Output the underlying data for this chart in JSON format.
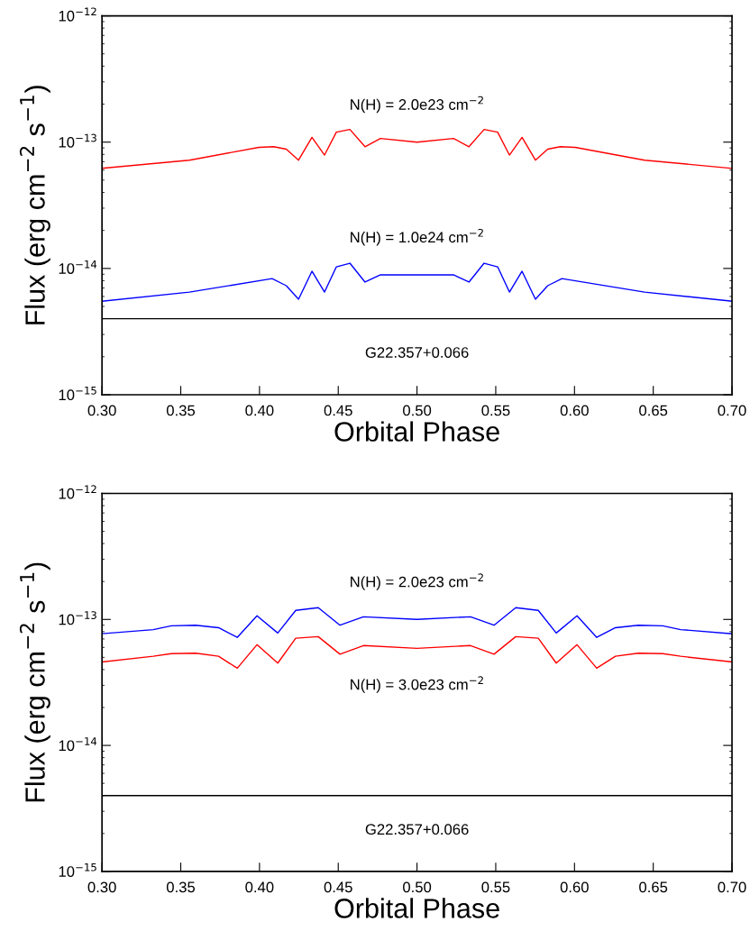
{
  "chart_data": [
    {
      "type": "line",
      "xlabel": "Orbital Phase",
      "ylabel": "Flux (erg cm$^{−2}$ s$^{−1}$)",
      "log": "y",
      "grid": false,
      "legend": false,
      "xlim": [
        0.3,
        0.7
      ],
      "ylim": [
        1e-15,
        1e-12
      ],
      "xticks": [
        {
          "value": 0.3,
          "label": "0.30"
        },
        {
          "value": 0.35,
          "label": "0.35"
        },
        {
          "value": 0.4,
          "label": "0.40"
        },
        {
          "value": 0.45,
          "label": "0.45"
        },
        {
          "value": 0.5,
          "label": "0.50"
        },
        {
          "value": 0.55,
          "label": "0.55"
        },
        {
          "value": 0.6,
          "label": "0.60"
        },
        {
          "value": 0.65,
          "label": "0.65"
        },
        {
          "value": 0.7,
          "label": "0.70"
        }
      ],
      "yticks": [
        {
          "value": 1e-15,
          "label": "10$^{−15}$"
        },
        {
          "value": 1e-14,
          "label": "10$^{−14}$"
        },
        {
          "value": 1e-13,
          "label": "10$^{−13}$"
        },
        {
          "value": 1e-12,
          "label": "10$^{−12}$"
        }
      ],
      "series": [
        {
          "name": "N(H) = 2.0e23 cm$^{−2}$",
          "color": "#ff0000",
          "x": [
            0.3,
            0.3555,
            0.3996,
            0.409,
            0.417,
            0.4248,
            0.4333,
            0.4413,
            0.4488,
            0.4574,
            0.467,
            0.4768,
            0.5,
            0.5232,
            0.533,
            0.5426,
            0.5512,
            0.5587,
            0.5667,
            0.5752,
            0.583,
            0.591,
            0.6004,
            0.6445,
            0.7
          ],
          "values": [
            6.2e-14,
            7.2e-14,
            9.1e-14,
            9.2e-14,
            8.8e-14,
            7.2e-14,
            1.09e-13,
            7.9e-14,
            1.2e-13,
            1.26e-13,
            9.2e-14,
            1.07e-13,
            1e-13,
            1.07e-13,
            9.2e-14,
            1.26e-13,
            1.2e-13,
            7.9e-14,
            1.09e-13,
            7.2e-14,
            8.8e-14,
            9.2e-14,
            9.1e-14,
            7.2e-14,
            6.2e-14
          ]
        },
        {
          "name": "N(H) = 1.0e24 cm$^{−2}$",
          "color": "#0000ff",
          "x": [
            0.3,
            0.3555,
            0.408,
            0.417,
            0.4248,
            0.4333,
            0.4413,
            0.4488,
            0.4574,
            0.467,
            0.4768,
            0.5,
            0.5232,
            0.533,
            0.5426,
            0.5512,
            0.5587,
            0.5667,
            0.5752,
            0.583,
            0.592,
            0.6445,
            0.7
          ],
          "values": [
            5.5e-15,
            6.5e-15,
            8.3e-15,
            7.3e-15,
            5.7e-15,
            9.5e-15,
            6.5e-15,
            1.03e-14,
            1.1e-14,
            7.8e-15,
            8.9e-15,
            8.9e-15,
            8.9e-15,
            7.8e-15,
            1.1e-14,
            1.03e-14,
            6.5e-15,
            9.5e-15,
            5.7e-15,
            7.3e-15,
            8.3e-15,
            6.5e-15,
            5.5e-15
          ]
        }
      ],
      "ref_lines": [
        {
          "axis": "y",
          "value": 4e-15,
          "label": "G22.357+0.066",
          "color": "#000000"
        }
      ]
    },
    {
      "type": "line",
      "xlabel": "Orbital Phase",
      "ylabel": "Flux (erg cm$^{−2}$ s$^{−1}$)",
      "log": "y",
      "grid": false,
      "legend": false,
      "xlim": [
        0.3,
        0.7
      ],
      "ylim": [
        1e-15,
        1e-12
      ],
      "xticks": [
        {
          "value": 0.3,
          "label": "0.30"
        },
        {
          "value": 0.35,
          "label": "0.35"
        },
        {
          "value": 0.4,
          "label": "0.40"
        },
        {
          "value": 0.45,
          "label": "0.45"
        },
        {
          "value": 0.5,
          "label": "0.50"
        },
        {
          "value": 0.55,
          "label": "0.55"
        },
        {
          "value": 0.6,
          "label": "0.60"
        },
        {
          "value": 0.65,
          "label": "0.65"
        },
        {
          "value": 0.7,
          "label": "0.70"
        }
      ],
      "yticks": [
        {
          "value": 1e-15,
          "label": "10$^{−15}$"
        },
        {
          "value": 1e-14,
          "label": "10$^{−14}$"
        },
        {
          "value": 1e-13,
          "label": "10$^{−13}$"
        },
        {
          "value": 1e-12,
          "label": "10$^{−12}$"
        }
      ],
      "series": [
        {
          "name": "N(H) = 2.0e23 cm$^{−2}$",
          "color": "#0000ff",
          "x": [
            0.3,
            0.3326,
            0.344,
            0.3595,
            0.374,
            0.3859,
            0.3984,
            0.4116,
            0.423,
            0.4373,
            0.4511,
            0.466,
            0.5,
            0.534,
            0.5489,
            0.5627,
            0.577,
            0.5884,
            0.6016,
            0.6141,
            0.626,
            0.6405,
            0.656,
            0.6674,
            0.7
          ],
          "values": [
            7.7e-14,
            8.3e-14,
            8.9e-14,
            9e-14,
            8.6e-14,
            7.2e-14,
            1.07e-13,
            7.8e-14,
            1.18e-13,
            1.24e-13,
            9e-14,
            1.05e-13,
            1e-13,
            1.05e-13,
            9e-14,
            1.24e-13,
            1.18e-13,
            7.8e-14,
            1.07e-13,
            7.2e-14,
            8.6e-14,
            9e-14,
            8.9e-14,
            8.3e-14,
            7.7e-14
          ]
        },
        {
          "name": "N(H) = 3.0e23 cm$^{−2}$",
          "color": "#ff0000",
          "x": [
            0.3,
            0.3326,
            0.344,
            0.3595,
            0.374,
            0.3859,
            0.3984,
            0.4116,
            0.423,
            0.4373,
            0.4511,
            0.466,
            0.5,
            0.534,
            0.5489,
            0.5627,
            0.577,
            0.5884,
            0.6016,
            0.6141,
            0.626,
            0.6405,
            0.656,
            0.6674,
            0.7
          ],
          "values": [
            4.6e-14,
            5.1e-14,
            5.35e-14,
            5.4e-14,
            5.1e-14,
            4.1e-14,
            6.3e-14,
            4.5e-14,
            7.1e-14,
            7.3e-14,
            5.3e-14,
            6.2e-14,
            5.9e-14,
            6.2e-14,
            5.3e-14,
            7.3e-14,
            7.1e-14,
            4.5e-14,
            6.3e-14,
            4.1e-14,
            5.1e-14,
            5.4e-14,
            5.35e-14,
            5.1e-14,
            4.6e-14
          ]
        }
      ],
      "ref_lines": [
        {
          "axis": "y",
          "value": 4e-15,
          "label": "G22.357+0.066",
          "color": "#000000"
        }
      ]
    }
  ]
}
